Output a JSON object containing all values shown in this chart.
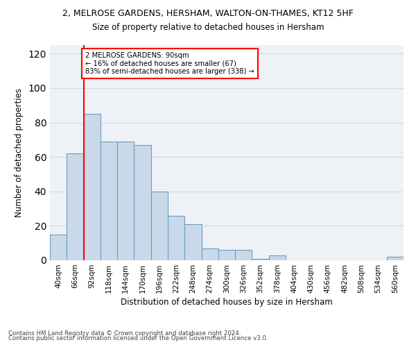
{
  "title1": "2, MELROSE GARDENS, HERSHAM, WALTON-ON-THAMES, KT12 5HF",
  "title2": "Size of property relative to detached houses in Hersham",
  "xlabel": "Distribution of detached houses by size in Hersham",
  "ylabel": "Number of detached properties",
  "footnote1": "Contains HM Land Registry data © Crown copyright and database right 2024.",
  "footnote2": "Contains public sector information licensed under the Open Government Licence v3.0.",
  "bar_labels": [
    "40sqm",
    "66sqm",
    "92sqm",
    "118sqm",
    "144sqm",
    "170sqm",
    "196sqm",
    "222sqm",
    "248sqm",
    "274sqm",
    "300sqm",
    "326sqm",
    "352sqm",
    "378sqm",
    "404sqm",
    "430sqm",
    "456sqm",
    "482sqm",
    "508sqm",
    "534sqm",
    "560sqm"
  ],
  "bar_values": [
    15,
    62,
    85,
    69,
    69,
    67,
    40,
    26,
    21,
    7,
    6,
    6,
    1,
    3,
    0,
    0,
    0,
    0,
    0,
    0,
    2
  ],
  "bar_color": "#c9d9ea",
  "bar_edge_color": "#6a9ec0",
  "property_line_x": 1.5,
  "property_label": "2 MELROSE GARDENS: 90sqm",
  "annotation_line1": "← 16% of detached houses are smaller (67)",
  "annotation_line2": "83% of semi-detached houses are larger (338) →",
  "annotation_box_color": "white",
  "annotation_box_edge": "red",
  "vline_color": "red",
  "ylim": [
    0,
    125
  ],
  "yticks": [
    0,
    20,
    40,
    60,
    80,
    100,
    120
  ],
  "grid_color": "#d0d8e4",
  "bg_color": "#eef2f7"
}
